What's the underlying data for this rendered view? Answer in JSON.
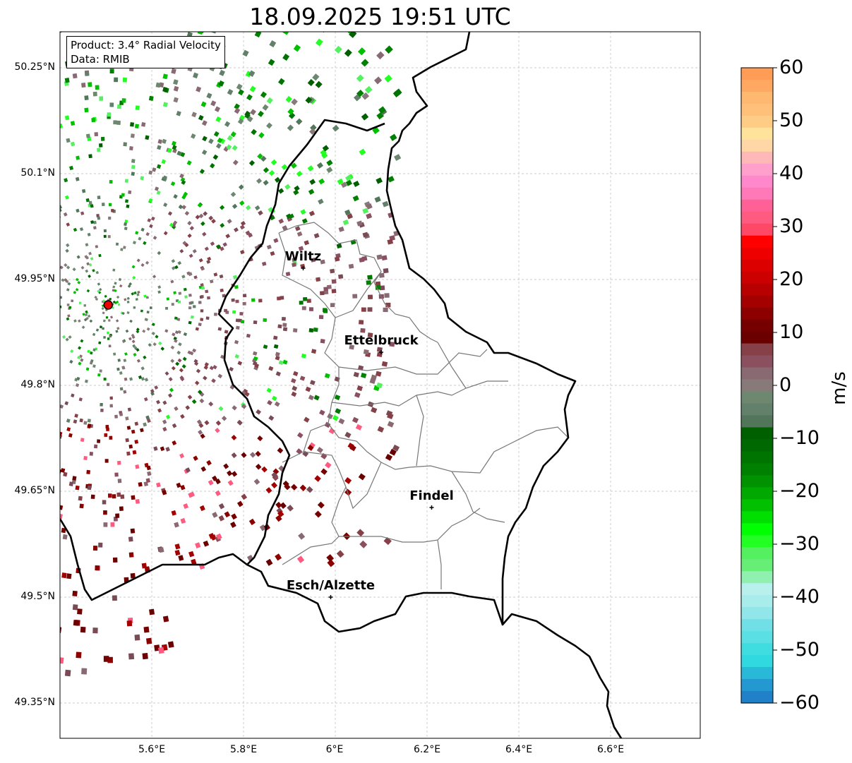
{
  "title": "18.09.2025 19:51 UTC",
  "info": {
    "product": "Product: 3.4° Radial Velocity",
    "data": "Data: RMIB"
  },
  "axes": {
    "lon_ticks": [
      "5.6°E",
      "5.8°E",
      "6°E",
      "6.2°E",
      "6.4°E",
      "6.6°E"
    ],
    "lat_ticks": [
      "50.25°N",
      "50.1°N",
      "49.95°N",
      "49.8°N",
      "49.65°N",
      "49.5°N",
      "49.35°N"
    ]
  },
  "cities": [
    {
      "name": "Wiltz",
      "lon": 5.93,
      "lat": 49.966
    },
    {
      "name": "Ettelbruck",
      "lon": 6.1,
      "lat": 49.847
    },
    {
      "name": "Findel",
      "lon": 6.21,
      "lat": 49.627
    },
    {
      "name": "Esch/Alzette",
      "lon": 5.99,
      "lat": 49.5
    }
  ],
  "radar": {
    "name": "radar site",
    "lon": 5.505,
    "lat": 49.914
  },
  "colorbar": {
    "label": "m/s",
    "ticks": [
      "60",
      "50",
      "40",
      "30",
      "20",
      "10",
      "0",
      "−10",
      "−20",
      "−30",
      "−40",
      "−50",
      "−60"
    ],
    "min": -60,
    "max": 60,
    "colors_top_to_bottom": [
      "#ff9c55",
      "#ffa862",
      "#ffb870",
      "#ffc07a",
      "#ffcc86",
      "#ffe39b",
      "#ffd6a6",
      "#ffb8b8",
      "#ff9fcc",
      "#ff88cc",
      "#ff78b8",
      "#ff6096",
      "#ff5a80",
      "#ff4866",
      "#ff0000",
      "#ee0000",
      "#dd0000",
      "#cc0000",
      "#b80000",
      "#a50000",
      "#8c0000",
      "#760000",
      "#6a0000",
      "#864048",
      "#8a5060",
      "#8a6a72",
      "#887a78",
      "#6e8870",
      "#62806a",
      "#52765a",
      "#006000",
      "#006800",
      "#007400",
      "#008000",
      "#009200",
      "#00a800",
      "#00c000",
      "#00e000",
      "#00ff00",
      "#22ff22",
      "#55f060",
      "#66ee77",
      "#90f0b0",
      "#b8f0ee",
      "#a8ecec",
      "#90e6e8",
      "#70e0e6",
      "#5ae0e4",
      "#40dde0",
      "#30d8e0",
      "#28b8d8",
      "#2498d0",
      "#2080c8"
    ]
  }
}
